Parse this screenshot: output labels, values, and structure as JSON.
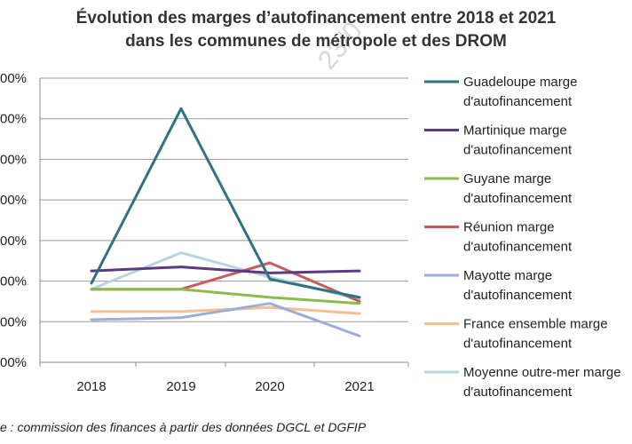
{
  "chart_data": {
    "type": "line",
    "title_lines": [
      "Évolution des marges d’autofinancement entre 2018 et 2021",
      "dans les communes de métropole et des DROM"
    ],
    "categories": [
      "2018",
      "2019",
      "2020",
      "2021"
    ],
    "ytick_labels": [
      "00%",
      "00%",
      "00%",
      "00%",
      "00%",
      "00%",
      "00%",
      "00%"
    ],
    "ylim": [
      0,
      7
    ],
    "yticks": [
      0,
      1,
      2,
      3,
      4,
      5,
      6,
      7
    ],
    "grid": true,
    "legend_position": "right",
    "series": [
      {
        "name_lines": [
          "Guadeloupe marge",
          "d'autofinancement"
        ],
        "color": "#2e7381",
        "values": [
          1.95,
          6.25,
          2.05,
          1.6
        ]
      },
      {
        "name_lines": [
          "Martinique marge",
          "d'autofinancement"
        ],
        "color": "#5b3a82",
        "values": [
          2.25,
          2.35,
          2.2,
          2.25
        ]
      },
      {
        "name_lines": [
          "Guyane marge",
          "d'autofinancement"
        ],
        "color": "#8dbb4a",
        "values": [
          1.8,
          1.8,
          1.6,
          1.45
        ]
      },
      {
        "name_lines": [
          "Réunion marge",
          "d'autofinancement"
        ],
        "color": "#c75d5a",
        "values": [
          1.8,
          1.8,
          2.45,
          1.5
        ]
      },
      {
        "name_lines": [
          "Mayotte marge",
          "d'autofinancement"
        ],
        "color": "#9aaed6",
        "values": [
          1.05,
          1.1,
          1.45,
          0.65
        ]
      },
      {
        "name_lines": [
          "France ensemble  marge",
          "d'autofinancement"
        ],
        "color": "#f7be92",
        "values": [
          1.25,
          1.25,
          1.35,
          1.2
        ]
      },
      {
        "name_lines": [
          "Moyenne outre-mer marge",
          "d'autofinancement"
        ],
        "color": "#b6d5e2",
        "values": [
          1.8,
          2.7,
          2.1,
          1.55
        ]
      }
    ],
    "source": "e : commission des finances à partir des données DGCL et DGFIP",
    "watermark": "23/0"
  }
}
